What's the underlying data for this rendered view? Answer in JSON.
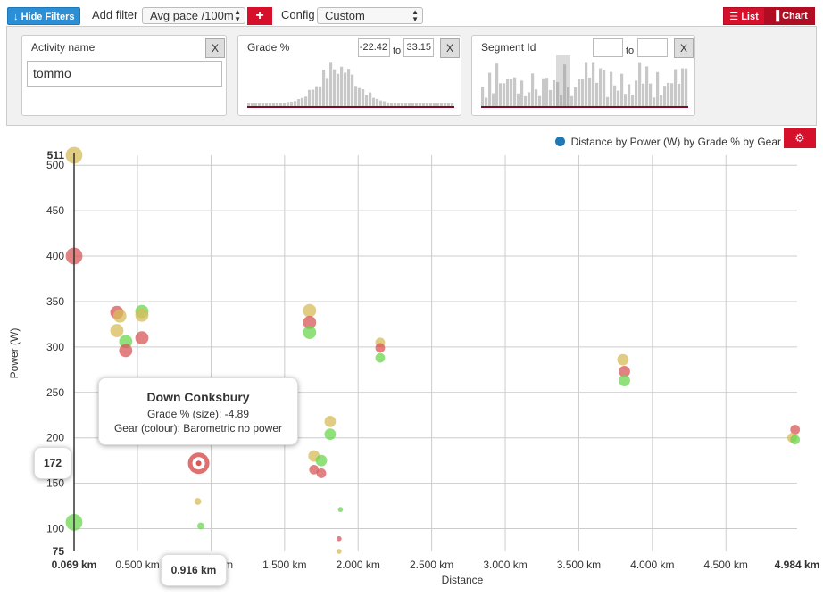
{
  "toolbar": {
    "hide_filters_label": "Hide Filters",
    "add_filter_label": "Add filter",
    "add_filter_value": "Avg pace /100m",
    "add_button_label": "+",
    "config_label": "Config",
    "config_value": "Custom",
    "list_label": "List",
    "chart_label": "Chart"
  },
  "filters": {
    "activity": {
      "title": "Activity name",
      "value": "tommo",
      "close": "X"
    },
    "grade": {
      "title": "Grade %",
      "min": "-22.42",
      "to": "to",
      "max": "33.15",
      "close": "X"
    },
    "segment": {
      "title": "Segment Id",
      "min": "",
      "to": "to",
      "max": "",
      "close": "X"
    }
  },
  "colors": {
    "accent_red": "#d6102a",
    "blue": "#2c8fd6",
    "legend_blue": "#1f77b4",
    "hist_gray": "#c8c8c8",
    "hist_line": "#7a0d23"
  },
  "legend": {
    "label": "Distance by Power (W) by Grade % by Gear",
    "settings_icon": "gear-icon"
  },
  "tooltip": {
    "title": "Down Conksbury",
    "line1": "Grade % (size): -4.89",
    "line2": "Gear (colour): Barometric no power"
  },
  "crosshair": {
    "y_label": "172",
    "x_label": "0.916 km"
  },
  "chart_data": {
    "type": "scatter",
    "xlabel": "Distance",
    "ylabel": "Power (W)",
    "xlim": [
      0.069,
      4.984
    ],
    "ylim": [
      75,
      511
    ],
    "x_ticks": [
      {
        "v": 0.069,
        "label": "0.069 km",
        "bold": true
      },
      {
        "v": 0.5,
        "label": "0.500 km"
      },
      {
        "v": 1.0,
        "label": "1.000 km"
      },
      {
        "v": 1.5,
        "label": "1.500 km"
      },
      {
        "v": 2.0,
        "label": "2.000 km"
      },
      {
        "v": 2.5,
        "label": "2.500 km"
      },
      {
        "v": 3.0,
        "label": "3.000 km"
      },
      {
        "v": 3.5,
        "label": "3.500 km"
      },
      {
        "v": 4.0,
        "label": "4.000 km"
      },
      {
        "v": 4.5,
        "label": "4.500 km"
      },
      {
        "v": 4.984,
        "label": "4.984 km",
        "bold": true
      }
    ],
    "y_ticks": [
      {
        "v": 75,
        "label": "75",
        "bold": true
      },
      {
        "v": 100,
        "label": "100"
      },
      {
        "v": 150,
        "label": "150"
      },
      {
        "v": 200,
        "label": "200"
      },
      {
        "v": 250,
        "label": "250"
      },
      {
        "v": 300,
        "label": "300"
      },
      {
        "v": 350,
        "label": "350"
      },
      {
        "v": 400,
        "label": "400"
      },
      {
        "v": 450,
        "label": "450"
      },
      {
        "v": 500,
        "label": "500"
      },
      {
        "v": 511,
        "label": "511",
        "bold": true
      }
    ],
    "points": [
      {
        "x": 0.069,
        "y": 511,
        "r": 9,
        "c": "#d8bc5a"
      },
      {
        "x": 0.069,
        "y": 400,
        "r": 9,
        "c": "#d95757"
      },
      {
        "x": 0.069,
        "y": 107,
        "r": 9,
        "c": "#6cd651"
      },
      {
        "x": 0.36,
        "y": 338,
        "r": 7,
        "c": "#d95757"
      },
      {
        "x": 0.38,
        "y": 334,
        "r": 7,
        "c": "#d8bc5a"
      },
      {
        "x": 0.36,
        "y": 318,
        "r": 7,
        "c": "#d8bc5a"
      },
      {
        "x": 0.42,
        "y": 306,
        "r": 7,
        "c": "#6cd651"
      },
      {
        "x": 0.42,
        "y": 296,
        "r": 7,
        "c": "#d95757"
      },
      {
        "x": 0.53,
        "y": 339,
        "r": 7,
        "c": "#6cd651"
      },
      {
        "x": 0.53,
        "y": 335,
        "r": 7,
        "c": "#d8bc5a"
      },
      {
        "x": 0.53,
        "y": 310,
        "r": 7,
        "c": "#d95757"
      },
      {
        "x": 0.916,
        "y": 172,
        "r": 9,
        "c": "#d95757",
        "selected": true
      },
      {
        "x": 0.91,
        "y": 130,
        "r": 3.5,
        "c": "#d8bc5a"
      },
      {
        "x": 0.93,
        "y": 103,
        "r": 3.5,
        "c": "#6cd651"
      },
      {
        "x": 1.67,
        "y": 340,
        "r": 7,
        "c": "#d8bc5a"
      },
      {
        "x": 1.67,
        "y": 327,
        "r": 7,
        "c": "#d95757"
      },
      {
        "x": 1.67,
        "y": 316,
        "r": 7,
        "c": "#6cd651"
      },
      {
        "x": 1.81,
        "y": 218,
        "r": 6,
        "c": "#d8bc5a"
      },
      {
        "x": 1.81,
        "y": 204,
        "r": 6,
        "c": "#6cd651"
      },
      {
        "x": 1.7,
        "y": 180,
        "r": 6,
        "c": "#d8bc5a"
      },
      {
        "x": 1.75,
        "y": 175,
        "r": 6,
        "c": "#6cd651"
      },
      {
        "x": 1.7,
        "y": 165,
        "r": 5,
        "c": "#d95757"
      },
      {
        "x": 1.75,
        "y": 161,
        "r": 5,
        "c": "#d95757"
      },
      {
        "x": 1.88,
        "y": 121,
        "r": 2.5,
        "c": "#6cd651"
      },
      {
        "x": 1.87,
        "y": 89,
        "r": 2.5,
        "c": "#d95757"
      },
      {
        "x": 1.87,
        "y": 75,
        "r": 2.5,
        "c": "#d8bc5a"
      },
      {
        "x": 2.15,
        "y": 305,
        "r": 5,
        "c": "#d8bc5a"
      },
      {
        "x": 2.15,
        "y": 299,
        "r": 5,
        "c": "#d95757"
      },
      {
        "x": 2.15,
        "y": 288,
        "r": 5,
        "c": "#6cd651"
      },
      {
        "x": 3.8,
        "y": 286,
        "r": 6,
        "c": "#d8bc5a"
      },
      {
        "x": 3.81,
        "y": 273,
        "r": 6,
        "c": "#d95757"
      },
      {
        "x": 3.81,
        "y": 263,
        "r": 6,
        "c": "#6cd651"
      },
      {
        "x": 4.97,
        "y": 209,
        "r": 5,
        "c": "#d95757"
      },
      {
        "x": 4.95,
        "y": 200,
        "r": 5,
        "c": "#d8bc5a"
      },
      {
        "x": 4.97,
        "y": 198,
        "r": 5,
        "c": "#6cd651"
      }
    ]
  }
}
